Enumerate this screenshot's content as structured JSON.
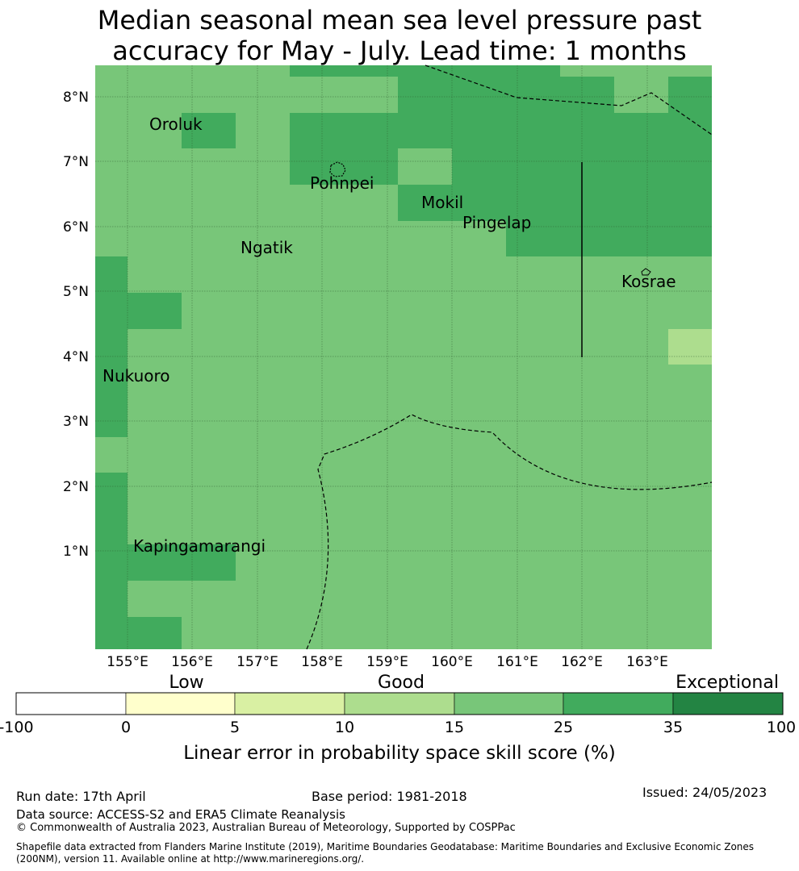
{
  "title_line1": "Median seasonal mean sea level pressure past",
  "title_line2": "accuracy for May - July. Lead time: 1 months",
  "map": {
    "lon_labels": [
      "155°E",
      "156°E",
      "157°E",
      "158°E",
      "159°E",
      "160°E",
      "161°E",
      "162°E",
      "163°E"
    ],
    "lat_labels": [
      "8°N",
      "7°N",
      "6°N",
      "5°N",
      "4°N",
      "3°N",
      "2°N",
      "1°N"
    ],
    "places": [
      {
        "name": "Oroluk"
      },
      {
        "name": "Pohnpei"
      },
      {
        "name": "Mokil"
      },
      {
        "name": "Pingelap"
      },
      {
        "name": "Ngatik"
      },
      {
        "name": "Kosrae"
      },
      {
        "name": "Nukuoro"
      },
      {
        "name": "Kapingamarangi"
      }
    ]
  },
  "colorbar": {
    "category_labels": [
      "Low",
      "Good",
      "Exceptional"
    ],
    "ticks": [
      "-100",
      "0",
      "5",
      "10",
      "15",
      "25",
      "35",
      "100"
    ],
    "colors": [
      "#ffffff",
      "#ffffcc",
      "#d9f0a3",
      "#addd8e",
      "#78c679",
      "#41ab5d",
      "#238443"
    ],
    "label": "Linear error in probability space skill score (%)"
  },
  "footer": {
    "run_date": "Run date: 17th April",
    "base_period": "Base period: 1981-2018",
    "issued": "Issued: 24/05/2023",
    "data_source": "Data source: ACCESS-S2 and ERA5 Climate Reanalysis",
    "copyright": "© Commonwealth of Australia 2023, Australian Bureau of Meteorology, Supported by COSPPac",
    "shapefile": "Shapefile data extracted from Flanders Marine Institute (2019), Maritime Boundaries Geodatabase: Maritime Boundaries and Exclusive Economic Zones (200NM), version 11. Available online at http://www.marineregions.org/."
  }
}
